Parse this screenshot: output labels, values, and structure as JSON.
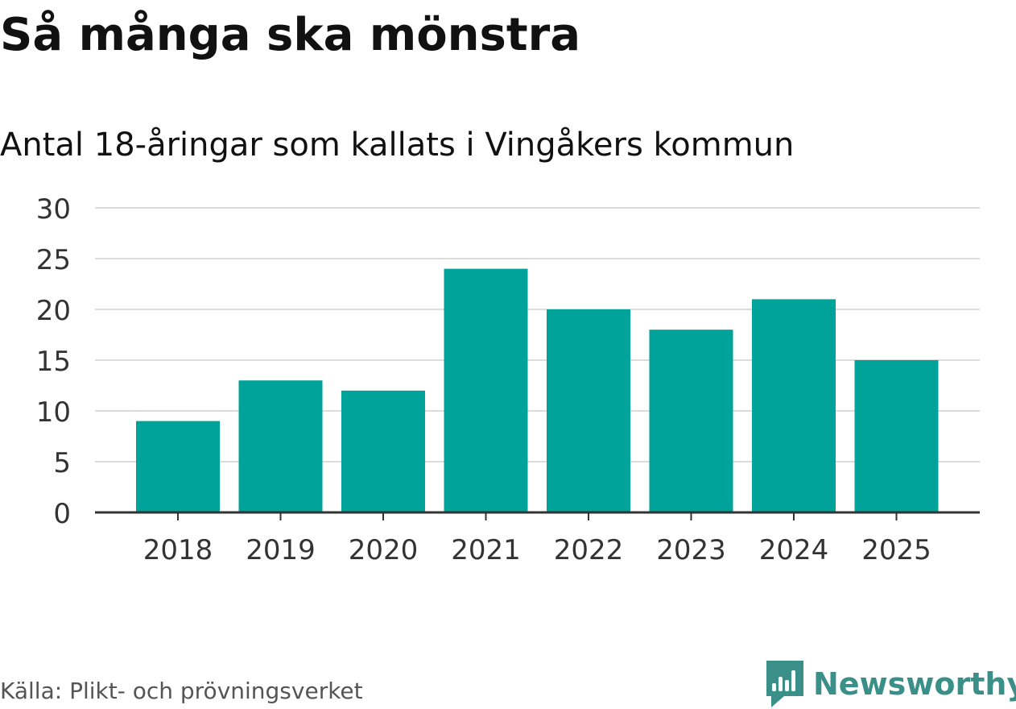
{
  "header": {
    "title": "Så många ska mönstra",
    "subtitle": "Antal 18-åringar som kallats i Vingåkers kommun"
  },
  "footer": {
    "source": "Källa: Plikt- och prövningsverket",
    "logo_text": "Newsworthy"
  },
  "colors": {
    "bar": "#00a39a",
    "grid": "#dcdcdc",
    "axis": "#333333",
    "logo": "#3a8f88"
  },
  "chart_data": {
    "type": "bar",
    "title": "Så många ska mönstra",
    "subtitle": "Antal 18-åringar som kallats i Vingåkers kommun",
    "categories": [
      "2018",
      "2019",
      "2020",
      "2021",
      "2022",
      "2023",
      "2024",
      "2025"
    ],
    "values": [
      9,
      13,
      12,
      24,
      20,
      18,
      21,
      15
    ],
    "xlabel": "",
    "ylabel": "",
    "ylim": [
      0,
      30
    ],
    "yticks": [
      0,
      5,
      10,
      15,
      20,
      25,
      30
    ],
    "grid": true,
    "legend": "none"
  }
}
